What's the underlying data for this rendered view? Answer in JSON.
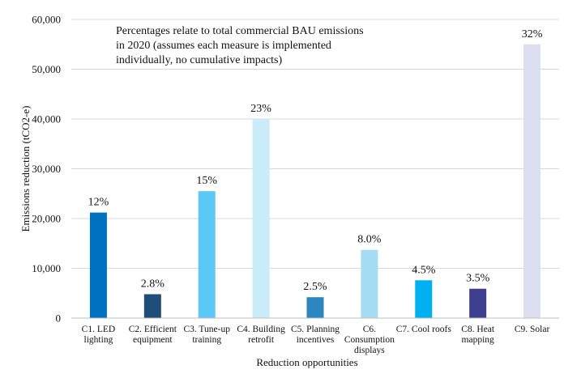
{
  "chart_data": {
    "type": "bar",
    "annotation": [
      "Percentages relate to total commercial BAU emissions",
      "in 2020 (assumes each measure is implemented",
      "individually, no cumulative impacts)"
    ],
    "xlabel": "Reduction opportunities",
    "ylabel": "Emissions reduction (tCO2-e)",
    "ylim": [
      0,
      60000
    ],
    "yticks": [
      0,
      10000,
      20000,
      30000,
      40000,
      50000,
      60000
    ],
    "ytick_labels": [
      "0",
      "10,000",
      "20,000",
      "30,000",
      "40,000",
      "50,000",
      "60,000"
    ],
    "grid": "horizontal",
    "categories": [
      [
        "C1. LED",
        "lighting"
      ],
      [
        "C2. Efficient",
        "equipment"
      ],
      [
        "C3. Tune-up",
        "training"
      ],
      [
        "C4. Building",
        "retrofit"
      ],
      [
        "C5. Planning",
        "incentives"
      ],
      [
        "C6.",
        "Consumption",
        "displays"
      ],
      [
        "C7. Cool roofs"
      ],
      [
        "C8. Heat",
        "mapping"
      ],
      [
        "C9. Solar"
      ]
    ],
    "values": [
      21200,
      4800,
      25500,
      40000,
      4200,
      13700,
      7600,
      5900,
      55000
    ],
    "data_labels": [
      "12%",
      "2.8%",
      "15%",
      "23%",
      "2.5%",
      "8.0%",
      "4.5%",
      "3.5%",
      "32%"
    ],
    "colors": [
      "#0070c0",
      "#1f4e79",
      "#5bc8f5",
      "#c9ecf8",
      "#2e86c1",
      "#a3dcf3",
      "#00b0f0",
      "#3f3f8f",
      "#dcdff0"
    ]
  }
}
